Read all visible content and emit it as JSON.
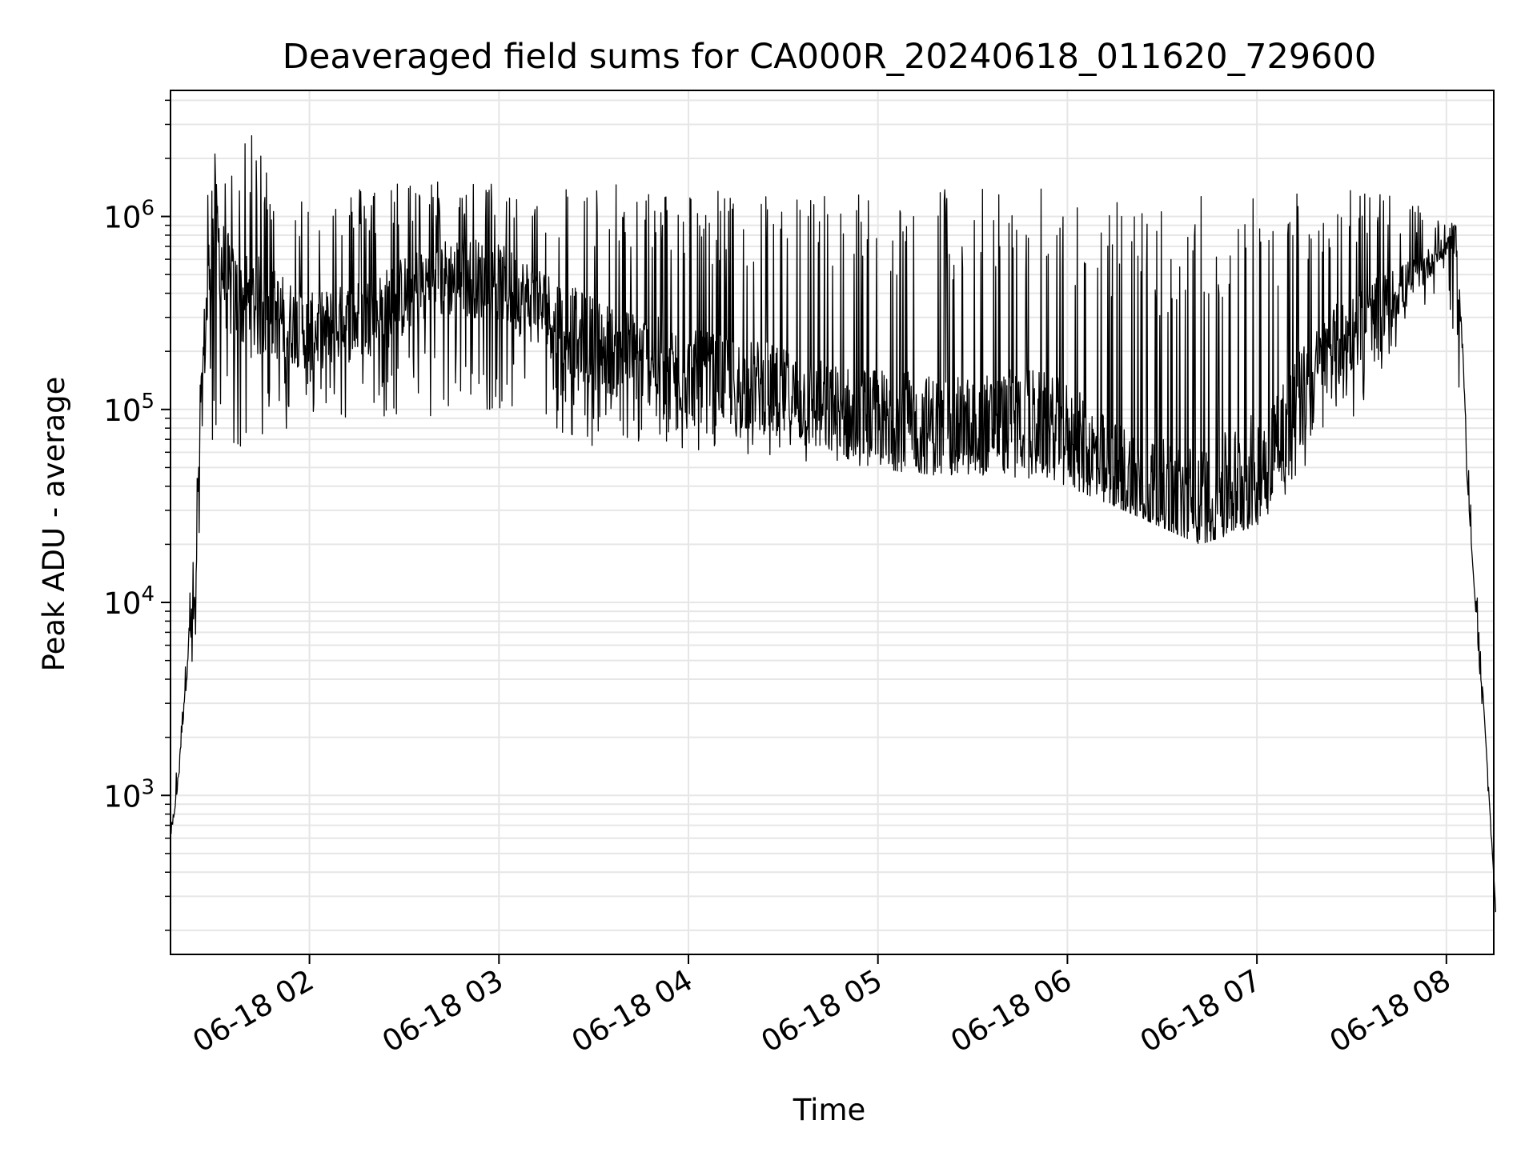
{
  "chart_data": {
    "type": "line",
    "title": "Deaveraged field sums for CA000R_20240618_011620_729600",
    "xlabel": "Time",
    "ylabel": "Peak ADU - average",
    "yscale": "log",
    "grid": true,
    "xlim": [
      "06-18 01:16",
      "06-18 08:15"
    ],
    "ylim": [
      150,
      4500000
    ],
    "x_ticks": [
      "06-18 02",
      "06-18 03",
      "06-18 04",
      "06-18 05",
      "06-18 06",
      "06-18 07",
      "06-18 08"
    ],
    "x_tick_hours": [
      2,
      3,
      4,
      5,
      6,
      7,
      8
    ],
    "y_ticks": [
      {
        "base": "10",
        "exp": "3",
        "value": 1000
      },
      {
        "base": "10",
        "exp": "4",
        "value": 10000
      },
      {
        "base": "10",
        "exp": "5",
        "value": 100000
      },
      {
        "base": "10",
        "exp": "6",
        "value": 1000000
      }
    ],
    "line_color": "#000000",
    "grid_color": "#e6e6e6",
    "envelope": {
      "description_hours": "x in hours after midnight (06-18 00:00)",
      "base": [
        [
          1.27,
          650
        ],
        [
          1.3,
          1000
        ],
        [
          1.33,
          2500
        ],
        [
          1.36,
          6000
        ],
        [
          1.4,
          10000
        ],
        [
          1.42,
          60000
        ],
        [
          1.44,
          180000
        ],
        [
          1.47,
          500000
        ],
        [
          1.5,
          900000
        ],
        [
          1.55,
          500000
        ],
        [
          1.6,
          380000
        ],
        [
          1.7,
          350000
        ],
        [
          1.85,
          300000
        ],
        [
          2.0,
          250000
        ],
        [
          2.2,
          280000
        ],
        [
          2.4,
          330000
        ],
        [
          2.6,
          450000
        ],
        [
          2.8,
          500000
        ],
        [
          3.0,
          450000
        ],
        [
          3.2,
          350000
        ],
        [
          3.4,
          250000
        ],
        [
          3.6,
          200000
        ],
        [
          3.8,
          180000
        ],
        [
          4.0,
          150000
        ],
        [
          4.2,
          140000
        ],
        [
          4.4,
          130000
        ],
        [
          4.6,
          110000
        ],
        [
          4.8,
          95000
        ],
        [
          5.0,
          90000
        ],
        [
          5.2,
          85000
        ],
        [
          5.4,
          80000
        ],
        [
          5.6,
          85000
        ],
        [
          5.8,
          90000
        ],
        [
          6.0,
          75000
        ],
        [
          6.2,
          50000
        ],
        [
          6.4,
          40000
        ],
        [
          6.6,
          32000
        ],
        [
          6.8,
          35000
        ],
        [
          7.0,
          50000
        ],
        [
          7.2,
          100000
        ],
        [
          7.4,
          200000
        ],
        [
          7.6,
          300000
        ],
        [
          7.8,
          450000
        ],
        [
          8.0,
          700000
        ],
        [
          8.03,
          850000
        ],
        [
          8.07,
          400000
        ],
        [
          8.1,
          100000
        ],
        [
          8.12,
          15000
        ],
        [
          8.15,
          6000
        ],
        [
          8.2,
          3000
        ],
        [
          8.24,
          1200
        ],
        [
          8.26,
          250
        ]
      ],
      "peak": [
        [
          1.27,
          900
        ],
        [
          1.3,
          1500
        ],
        [
          1.35,
          8000
        ],
        [
          1.4,
          25000
        ],
        [
          1.45,
          1500000
        ],
        [
          1.5,
          2200000
        ],
        [
          1.6,
          2000000
        ],
        [
          1.7,
          2700000
        ],
        [
          1.85,
          1600000
        ],
        [
          2.0,
          1300000
        ],
        [
          2.5,
          1600000
        ],
        [
          3.0,
          1500000
        ],
        [
          3.5,
          1500000
        ],
        [
          4.0,
          1400000
        ],
        [
          4.5,
          1400000
        ],
        [
          5.0,
          1400000
        ],
        [
          5.5,
          1500000
        ],
        [
          6.0,
          1400000
        ],
        [
          6.3,
          1200000
        ],
        [
          6.6,
          1300000
        ],
        [
          7.0,
          1400000
        ],
        [
          7.5,
          1500000
        ],
        [
          7.8,
          1200000
        ],
        [
          8.0,
          950000
        ],
        [
          8.05,
          900000
        ],
        [
          8.1,
          120000
        ],
        [
          8.26,
          260
        ]
      ],
      "trough": [
        [
          1.27,
          600
        ],
        [
          1.4,
          6000
        ],
        [
          1.45,
          60000
        ],
        [
          1.6,
          60000
        ],
        [
          2.0,
          90000
        ],
        [
          2.5,
          90000
        ],
        [
          3.0,
          100000
        ],
        [
          3.5,
          60000
        ],
        [
          4.0,
          60000
        ],
        [
          4.5,
          55000
        ],
        [
          5.0,
          45000
        ],
        [
          5.5,
          45000
        ],
        [
          6.0,
          40000
        ],
        [
          6.3,
          30000
        ],
        [
          6.7,
          20000
        ],
        [
          7.0,
          25000
        ],
        [
          7.3,
          50000
        ],
        [
          7.6,
          120000
        ],
        [
          8.0,
          500000
        ],
        [
          8.1,
          60000
        ],
        [
          8.26,
          240
        ]
      ]
    }
  }
}
